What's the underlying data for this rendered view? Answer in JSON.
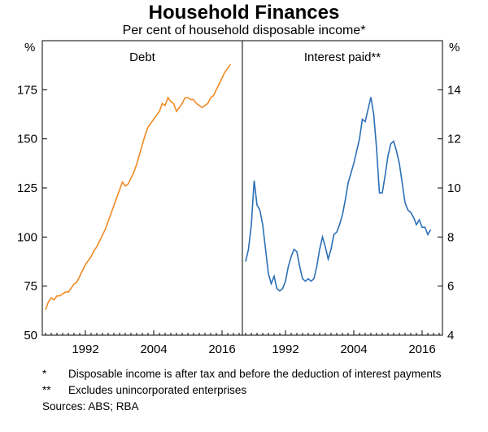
{
  "title": "Household Finances",
  "subtitle": "Per cent of household disposable income*",
  "chart_data": [
    {
      "type": "line",
      "panel_title": "Debt",
      "unit": "%",
      "ylim": [
        50,
        200
      ],
      "yticks": [
        50,
        75,
        100,
        125,
        150,
        175
      ],
      "xlim": [
        1985,
        2019
      ],
      "xticks": [
        1992,
        2004,
        2016
      ],
      "grid": false,
      "color": "#f08a24",
      "series": [
        {
          "x": [
            1985.0,
            1985.5,
            1986.0,
            1986.5,
            1987.0,
            1987.5,
            1988.0,
            1988.5,
            1989.0,
            1989.5,
            1990.0,
            1990.5,
            1991.0,
            1991.5,
            1992.0,
            1992.5,
            1993.0,
            1993.5,
            1994.0,
            1994.5,
            1995.0,
            1995.5,
            1996.0,
            1996.5,
            1997.0,
            1997.5,
            1998.0,
            1998.5,
            1999.0,
            1999.5,
            2000.0,
            2000.5,
            2001.0,
            2001.5,
            2002.0,
            2002.5,
            2003.0,
            2003.5,
            2004.0,
            2004.5,
            2005.0,
            2005.5,
            2006.0,
            2006.5,
            2007.0,
            2007.5,
            2008.0,
            2008.5,
            2009.0,
            2009.5,
            2010.0,
            2010.5,
            2011.0,
            2011.5,
            2012.0,
            2012.5,
            2013.0,
            2013.5,
            2014.0,
            2014.5,
            2015.0,
            2015.5,
            2016.0,
            2016.5,
            2017.0,
            2017.5
          ],
          "values": [
            63,
            67,
            69,
            68,
            70,
            70,
            71,
            72,
            72,
            74,
            76,
            77,
            80,
            83,
            86,
            88,
            90,
            93,
            95,
            98,
            101,
            104,
            108,
            112,
            116,
            120,
            124,
            128,
            126,
            127,
            130,
            133,
            137,
            142,
            147,
            152,
            156,
            158,
            160,
            162,
            164,
            168,
            167,
            171,
            169,
            168,
            164,
            166,
            168,
            171,
            171,
            170,
            170,
            168,
            167,
            166,
            167,
            168,
            171,
            172,
            175,
            178,
            181,
            184,
            186,
            188
          ]
        }
      ]
    },
    {
      "type": "line",
      "panel_title": "Interest paid**",
      "unit": "%",
      "ylim": [
        4,
        16
      ],
      "yticks": [
        4,
        6,
        8,
        10,
        12,
        14
      ],
      "xlim": [
        1985,
        2019
      ],
      "xticks": [
        1992,
        2004,
        2016
      ],
      "grid": false,
      "color": "#2b6fb6",
      "series": [
        {
          "x": [
            1985.0,
            1985.5,
            1986.0,
            1986.5,
            1987.0,
            1987.5,
            1988.0,
            1988.5,
            1989.0,
            1989.5,
            1990.0,
            1990.5,
            1991.0,
            1991.5,
            1992.0,
            1992.5,
            1993.0,
            1993.5,
            1994.0,
            1994.5,
            1995.0,
            1995.5,
            1996.0,
            1996.5,
            1997.0,
            1997.5,
            1998.0,
            1998.5,
            1999.0,
            1999.5,
            2000.0,
            2000.5,
            2001.0,
            2001.5,
            2002.0,
            2002.5,
            2003.0,
            2003.5,
            2004.0,
            2004.5,
            2005.0,
            2005.5,
            2006.0,
            2006.5,
            2007.0,
            2007.5,
            2008.0,
            2008.5,
            2009.0,
            2009.5,
            2010.0,
            2010.5,
            2011.0,
            2011.5,
            2012.0,
            2012.5,
            2013.0,
            2013.5,
            2014.0,
            2014.5,
            2015.0,
            2015.5,
            2016.0,
            2016.5,
            2017.0,
            2017.5
          ],
          "values": [
            7.0,
            7.5,
            8.5,
            10.3,
            9.3,
            9.1,
            8.5,
            7.5,
            6.5,
            6.1,
            6.4,
            5.9,
            5.8,
            5.9,
            6.2,
            6.8,
            7.2,
            7.5,
            7.4,
            6.8,
            6.3,
            6.2,
            6.3,
            6.2,
            6.3,
            6.8,
            7.5,
            8.0,
            7.6,
            7.1,
            7.5,
            8.1,
            8.2,
            8.5,
            8.9,
            9.5,
            10.2,
            10.6,
            11.0,
            11.5,
            12.0,
            12.8,
            12.7,
            13.2,
            13.7,
            13.0,
            11.6,
            9.8,
            9.8,
            10.5,
            11.3,
            11.8,
            11.9,
            11.5,
            11.0,
            10.2,
            9.4,
            9.1,
            9.0,
            8.8,
            8.5,
            8.7,
            8.4,
            8.4,
            8.1,
            8.3
          ]
        }
      ]
    }
  ],
  "notes": [
    {
      "mark": "*",
      "text": "Disposable income is after tax and before the deduction of interest payments"
    },
    {
      "mark": "**",
      "text": "Excludes unincorporated enterprises"
    }
  ],
  "sources": "Sources: ABS; RBA"
}
